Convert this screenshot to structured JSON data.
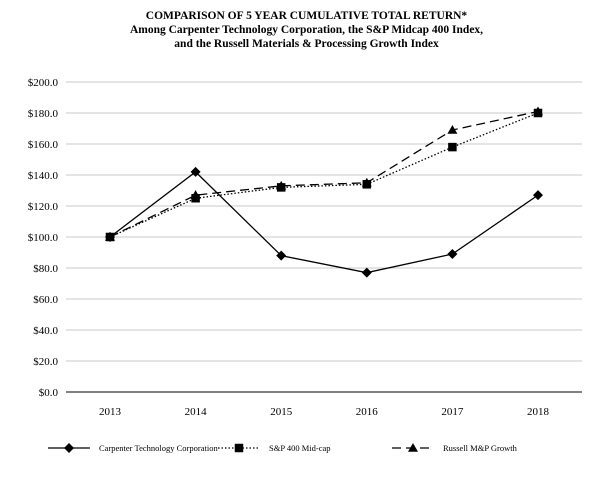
{
  "chart_data": {
    "type": "line",
    "title": "COMPARISON OF 5 YEAR CUMULATIVE TOTAL RETURN*",
    "subtitle_lines": [
      "Among Carpenter Technology Corporation, the S&P Midcap 400 Index,",
      "and the Russell Materials & Processing Growth Index"
    ],
    "categories": [
      "2013",
      "2014",
      "2015",
      "2016",
      "2017",
      "2018"
    ],
    "ylim": [
      0,
      200
    ],
    "yticks": [
      0,
      20,
      40,
      60,
      80,
      100,
      120,
      140,
      160,
      180,
      200
    ],
    "ytick_labels": [
      "$0.0",
      "$20.0",
      "$40.0",
      "$60.0",
      "$80.0",
      "$100.0",
      "$120.0",
      "$140.0",
      "$160.0",
      "$180.0",
      "$200.0"
    ],
    "grid": true,
    "legend_position": "bottom",
    "series": [
      {
        "name": "Carpenter Technology Corporation",
        "values": [
          100,
          142,
          88,
          77,
          89,
          127
        ],
        "marker": "diamond",
        "line_style": "solid",
        "color": "#000000"
      },
      {
        "name": "S&P 400 Mid-cap",
        "values": [
          100,
          125,
          132,
          134,
          158,
          180
        ],
        "marker": "square",
        "line_style": "dotted",
        "color": "#000000"
      },
      {
        "name": "Russell M&P Growth",
        "values": [
          100,
          127,
          133,
          135,
          169,
          181
        ],
        "marker": "triangle",
        "line_style": "dashed",
        "color": "#000000"
      }
    ]
  }
}
